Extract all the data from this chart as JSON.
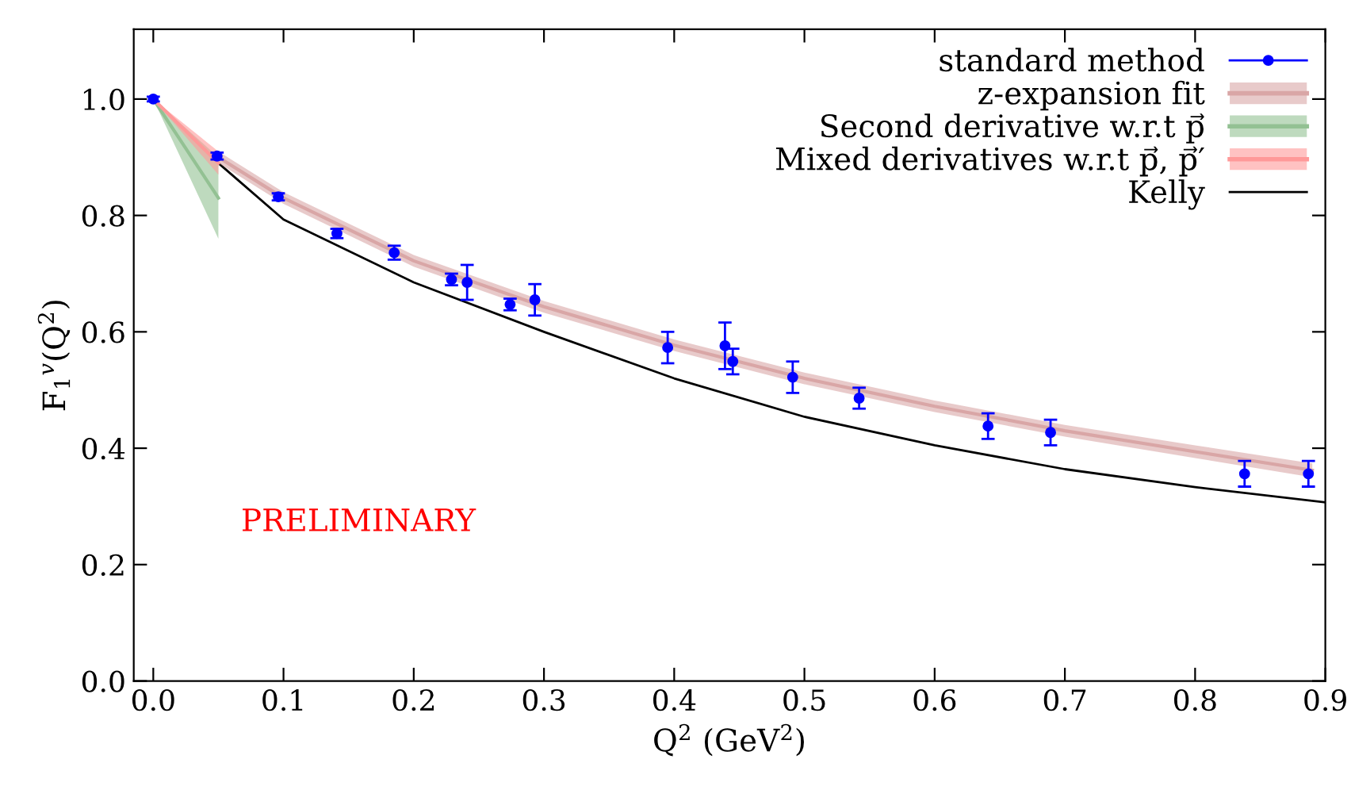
{
  "chart_data": {
    "type": "scatter",
    "xlabel": "Q$^{2}$ (GeV$^{2}$)",
    "ylabel": "F$_{1}$$^{v}$(Q$^{2}$)",
    "xlim": [
      -0.015,
      0.9
    ],
    "ylim": [
      0,
      1.12
    ],
    "xticks": [
      {
        "value": 0,
        "label": "0.0"
      },
      0.1,
      0.2,
      0.3,
      0.4,
      0.5,
      0.6,
      0.7,
      0.8,
      0.9
    ],
    "yticks": [
      {
        "value": 0,
        "label": "0.0"
      },
      0.2,
      0.4,
      0.6,
      0.8,
      {
        "value": 1,
        "label": "1.0"
      }
    ],
    "legend": "top right",
    "grid": false,
    "annotations": [
      "PRELIMINARY"
    ],
    "series": [
      {
        "name": "standard method",
        "color": "#0000ff",
        "marker": "circle",
        "x": [
          0,
          0.049,
          0.096,
          0.141,
          0.185,
          0.229,
          0.241,
          0.274,
          0.293,
          0.395,
          0.439,
          0.445,
          0.491,
          0.542,
          0.641,
          0.689,
          0.838,
          0.887
        ],
        "values": [
          1.0,
          0.902,
          0.832,
          0.769,
          0.736,
          0.69,
          0.685,
          0.647,
          0.655,
          0.573,
          0.576,
          0.549,
          0.522,
          0.486,
          0.438,
          0.427,
          0.356,
          0.356
        ],
        "errors": [
          0.004,
          0.006,
          0.006,
          0.008,
          0.012,
          0.01,
          0.03,
          0.01,
          0.027,
          0.027,
          0.04,
          0.022,
          0.027,
          0.018,
          0.022,
          0.022,
          0.022,
          0.022
        ]
      },
      {
        "name": "z-expansion fit",
        "type": "line",
        "color": "#d9a6a6",
        "x": [
          0.05,
          0.1,
          0.2,
          0.3,
          0.4,
          0.5,
          0.6,
          0.7,
          0.8,
          0.89
        ],
        "values": [
          0.9,
          0.83,
          0.722,
          0.643,
          0.577,
          0.52,
          0.472,
          0.43,
          0.394,
          0.362
        ],
        "lower": [
          0.89,
          0.82,
          0.712,
          0.633,
          0.567,
          0.51,
          0.462,
          0.42,
          0.383,
          0.35
        ],
        "upper": [
          0.91,
          0.84,
          0.732,
          0.653,
          0.587,
          0.53,
          0.482,
          0.44,
          0.405,
          0.374
        ]
      },
      {
        "name": "Second derivative w.r.t p⃗",
        "type": "line",
        "color": "#93c193",
        "x": [
          0,
          0.05
        ],
        "values": [
          1.0,
          0.83
        ],
        "lower": [
          1.0,
          0.76
        ],
        "upper": [
          1.0,
          0.9
        ]
      },
      {
        "name": "Mixed derivatives w.r.t p⃗, p⃗′",
        "type": "line",
        "color": "#ff9999",
        "x": [
          0,
          0.05
        ],
        "values": [
          1.0,
          0.89
        ],
        "lower": [
          1.0,
          0.87
        ],
        "upper": [
          1.0,
          0.91
        ]
      },
      {
        "name": "Kelly",
        "type": "line",
        "color": "#000000",
        "line_style": "solid",
        "x": [
          0,
          0.05,
          0.1,
          0.2,
          0.3,
          0.4,
          0.5,
          0.6,
          0.7,
          0.8,
          0.9
        ],
        "values": [
          1.0,
          0.89,
          0.793,
          0.685,
          0.6,
          0.52,
          0.454,
          0.405,
          0.364,
          0.333,
          0.307
        ]
      }
    ]
  }
}
